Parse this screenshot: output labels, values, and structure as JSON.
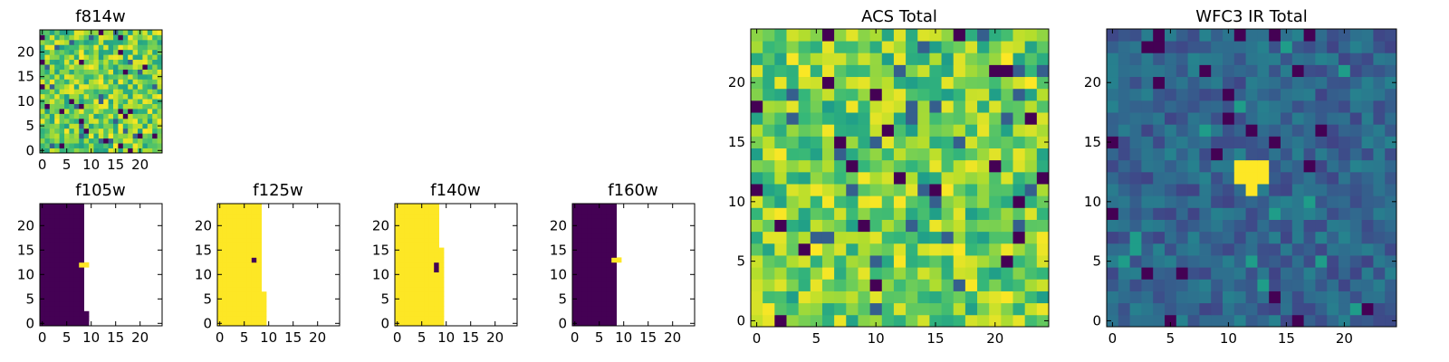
{
  "chart_data": [
    {
      "id": "f814w",
      "type": "heatmap",
      "title": "f814w",
      "pattern": "noise_acs",
      "seed": 11,
      "xticks": [
        0,
        5,
        10,
        15,
        20
      ],
      "yticks": [
        0,
        5,
        10,
        15,
        20
      ],
      "xlim": [
        0,
        25
      ],
      "ylim": [
        0,
        25
      ],
      "colormap": "viridis"
    },
    {
      "id": "f105w",
      "type": "heatmap",
      "title": "f105w",
      "pattern": "ir_dark",
      "seed": 21,
      "xticks": [
        0,
        5,
        10,
        15,
        20
      ],
      "yticks": [
        0,
        5,
        10,
        15,
        20
      ],
      "xlim": [
        0,
        25
      ],
      "ylim": [
        0,
        25
      ],
      "colormap": "viridis"
    },
    {
      "id": "f125w",
      "type": "heatmap",
      "title": "f125w",
      "pattern": "ir_bright",
      "seed": 31,
      "xticks": [
        0,
        5,
        10,
        15,
        20
      ],
      "yticks": [
        0,
        5,
        10,
        15,
        20
      ],
      "xlim": [
        0,
        25
      ],
      "ylim": [
        0,
        25
      ],
      "colormap": "viridis"
    },
    {
      "id": "f140w",
      "type": "heatmap",
      "title": "f140w",
      "pattern": "ir_bright_b",
      "seed": 41,
      "xticks": [
        0,
        5,
        10,
        15,
        20
      ],
      "yticks": [
        0,
        5,
        10,
        15,
        20
      ],
      "xlim": [
        0,
        25
      ],
      "ylim": [
        0,
        25
      ],
      "colormap": "viridis"
    },
    {
      "id": "f160w",
      "type": "heatmap",
      "title": "f160w",
      "pattern": "ir_dark_b",
      "seed": 51,
      "xticks": [
        0,
        5,
        10,
        15,
        20
      ],
      "yticks": [
        0,
        5,
        10,
        15,
        20
      ],
      "xlim": [
        0,
        25
      ],
      "ylim": [
        0,
        25
      ],
      "colormap": "viridis"
    },
    {
      "id": "acs_total",
      "type": "heatmap",
      "title": "ACS Total",
      "pattern": "noise_acs",
      "seed": 61,
      "xticks": [
        0,
        5,
        10,
        15,
        20
      ],
      "yticks": [
        0,
        5,
        10,
        15,
        20
      ],
      "xlim": [
        0,
        25
      ],
      "ylim": [
        0,
        25
      ],
      "colormap": "viridis"
    },
    {
      "id": "wfc3_ir_total",
      "type": "heatmap",
      "title": "WFC3 IR Total",
      "pattern": "noise_ir_source",
      "seed": 71,
      "xticks": [
        0,
        5,
        10,
        15,
        20
      ],
      "yticks": [
        0,
        5,
        10,
        15,
        20
      ],
      "xlim": [
        0,
        25
      ],
      "ylim": [
        0,
        25
      ],
      "colormap": "viridis",
      "source_region": {
        "x": [
          11,
          14
        ],
        "y": [
          12,
          14
        ]
      }
    }
  ],
  "colors": {
    "bright": "#fde725",
    "dark": "#440154",
    "empty": "#ffffff"
  }
}
